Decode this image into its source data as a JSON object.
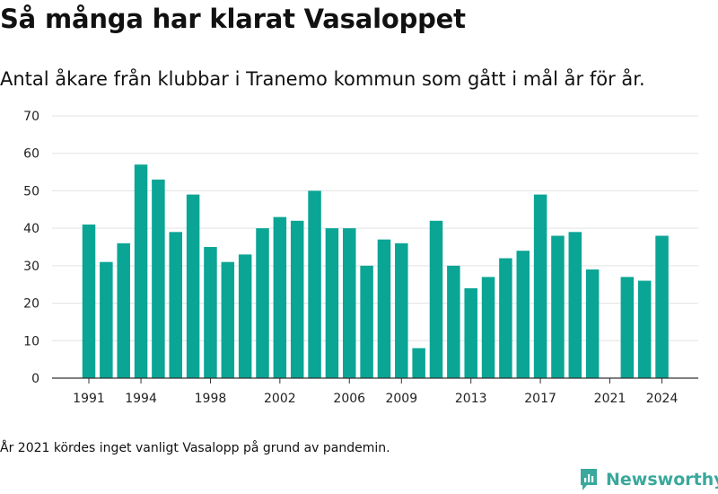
{
  "header": {
    "title": "Så många har klarat Vasaloppet",
    "subtitle": "Antal åkare från klubbar i Tranemo kommun som gått i mål år för år."
  },
  "footer": {
    "note": "År 2021 kördes inget vanligt Vasalopp på grund av pandemin.",
    "brand": "Newsworthy"
  },
  "colors": {
    "bar": "#0aa595",
    "grid": "#e3e3e3",
    "axis": "#333333",
    "brand": "#3aa89c"
  },
  "icons": {
    "brand_logo": "newsworthy-logo-icon"
  },
  "chart_data": {
    "type": "bar",
    "title": "",
    "xlabel": "",
    "ylabel": "",
    "ylim": [
      0,
      70
    ],
    "yticks": [
      0,
      10,
      20,
      30,
      40,
      50,
      60,
      70
    ],
    "xtick_labels": [
      "1991",
      "1994",
      "1998",
      "2002",
      "2006",
      "2009",
      "2013",
      "2017",
      "2021",
      "2024"
    ],
    "grid": true,
    "legend": "none",
    "categories": [
      "1991",
      "1992",
      "1993",
      "1994",
      "1995",
      "1996",
      "1997",
      "1998",
      "1999",
      "2000",
      "2001",
      "2002",
      "2003",
      "2004",
      "2005",
      "2006",
      "2007",
      "2008",
      "2009",
      "2010",
      "2011",
      "2012",
      "2013",
      "2014",
      "2015",
      "2016",
      "2017",
      "2018",
      "2019",
      "2020",
      "2021",
      "2022",
      "2023",
      "2024"
    ],
    "values": [
      41,
      31,
      36,
      57,
      53,
      39,
      49,
      35,
      31,
      33,
      40,
      43,
      42,
      50,
      40,
      40,
      30,
      37,
      36,
      8,
      42,
      30,
      24,
      27,
      32,
      34,
      49,
      38,
      39,
      29,
      0,
      27,
      26,
      38
    ]
  }
}
